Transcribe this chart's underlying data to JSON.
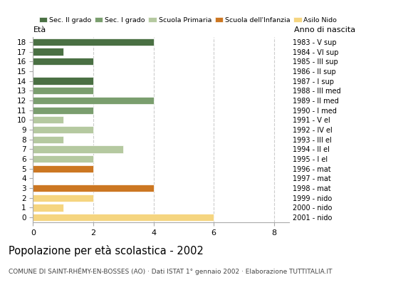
{
  "ages": [
    18,
    17,
    16,
    15,
    14,
    13,
    12,
    11,
    10,
    9,
    8,
    7,
    6,
    5,
    4,
    3,
    2,
    1,
    0
  ],
  "right_labels": [
    "1983 - V sup",
    "1984 - VI sup",
    "1985 - III sup",
    "1986 - II sup",
    "1987 - I sup",
    "1988 - III med",
    "1989 - II med",
    "1990 - I med",
    "1991 - V el",
    "1992 - IV el",
    "1993 - III el",
    "1994 - II el",
    "1995 - I el",
    "1996 - mat",
    "1997 - mat",
    "1998 - mat",
    "1999 - nido",
    "2000 - nido",
    "2001 - nido"
  ],
  "values": [
    4,
    1,
    2,
    0,
    2,
    2,
    4,
    2,
    1,
    2,
    1,
    3,
    2,
    2,
    0,
    4,
    2,
    1,
    6
  ],
  "colors": [
    "#4a7043",
    "#4a7043",
    "#4a7043",
    "#4a7043",
    "#4a7043",
    "#7a9e6e",
    "#7a9e6e",
    "#7a9e6e",
    "#b5c9a0",
    "#b5c9a0",
    "#b5c9a0",
    "#b5c9a0",
    "#b5c9a0",
    "#cc7722",
    "#cc7722",
    "#cc7722",
    "#f5d580",
    "#f5d580",
    "#f5d580"
  ],
  "legend_labels": [
    "Sec. II grado",
    "Sec. I grado",
    "Scuola Primaria",
    "Scuola dell'Infanzia",
    "Asilo Nido"
  ],
  "legend_colors": [
    "#4a7043",
    "#7a9e6e",
    "#b5c9a0",
    "#cc7722",
    "#f5d580"
  ],
  "title": "Popolazione per età scolastica - 2002",
  "subtitle": "COMUNE DI SAINT-RHÉMY-EN-BOSSES (AO) · Dati ISTAT 1° gennaio 2002 · Elaborazione TUTTITALIA.IT",
  "xlabel_left": "Età",
  "xlabel_right": "Anno di nascita",
  "xlim": [
    0,
    8.5
  ],
  "bg_color": "#ffffff",
  "grid_color": "#cccccc",
  "bar_edge_color": "#ffffff"
}
